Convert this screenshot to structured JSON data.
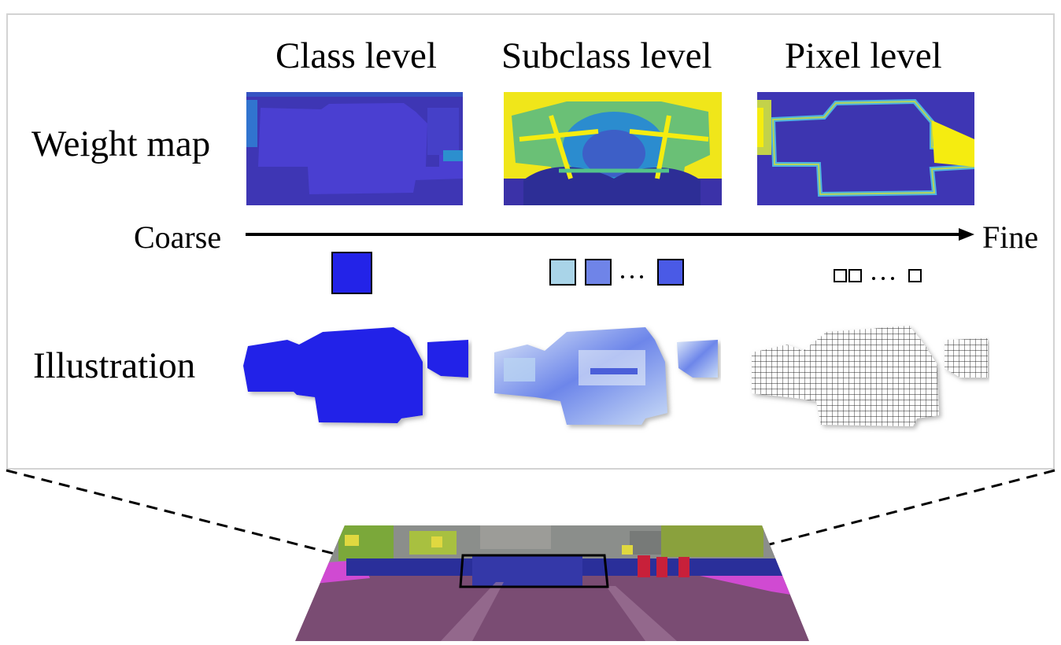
{
  "columns": {
    "class": "Class level",
    "subclass": "Subclass level",
    "pixel": "Pixel level"
  },
  "rows": {
    "weight_map": "Weight map",
    "illustration": "Illustration"
  },
  "axis": {
    "start": "Coarse",
    "end": "Fine"
  },
  "colors": {
    "heat_low": "#3b2fb0",
    "heat_mid": "#2c8fce",
    "heat_high": "#f5ec10",
    "class_blue": "#2323e8",
    "road": "#7a4c73",
    "sidewalk": "#d04ad2",
    "vegetation": "#7ba83a",
    "person": "#c8203a",
    "building": "#8b8e8b"
  }
}
